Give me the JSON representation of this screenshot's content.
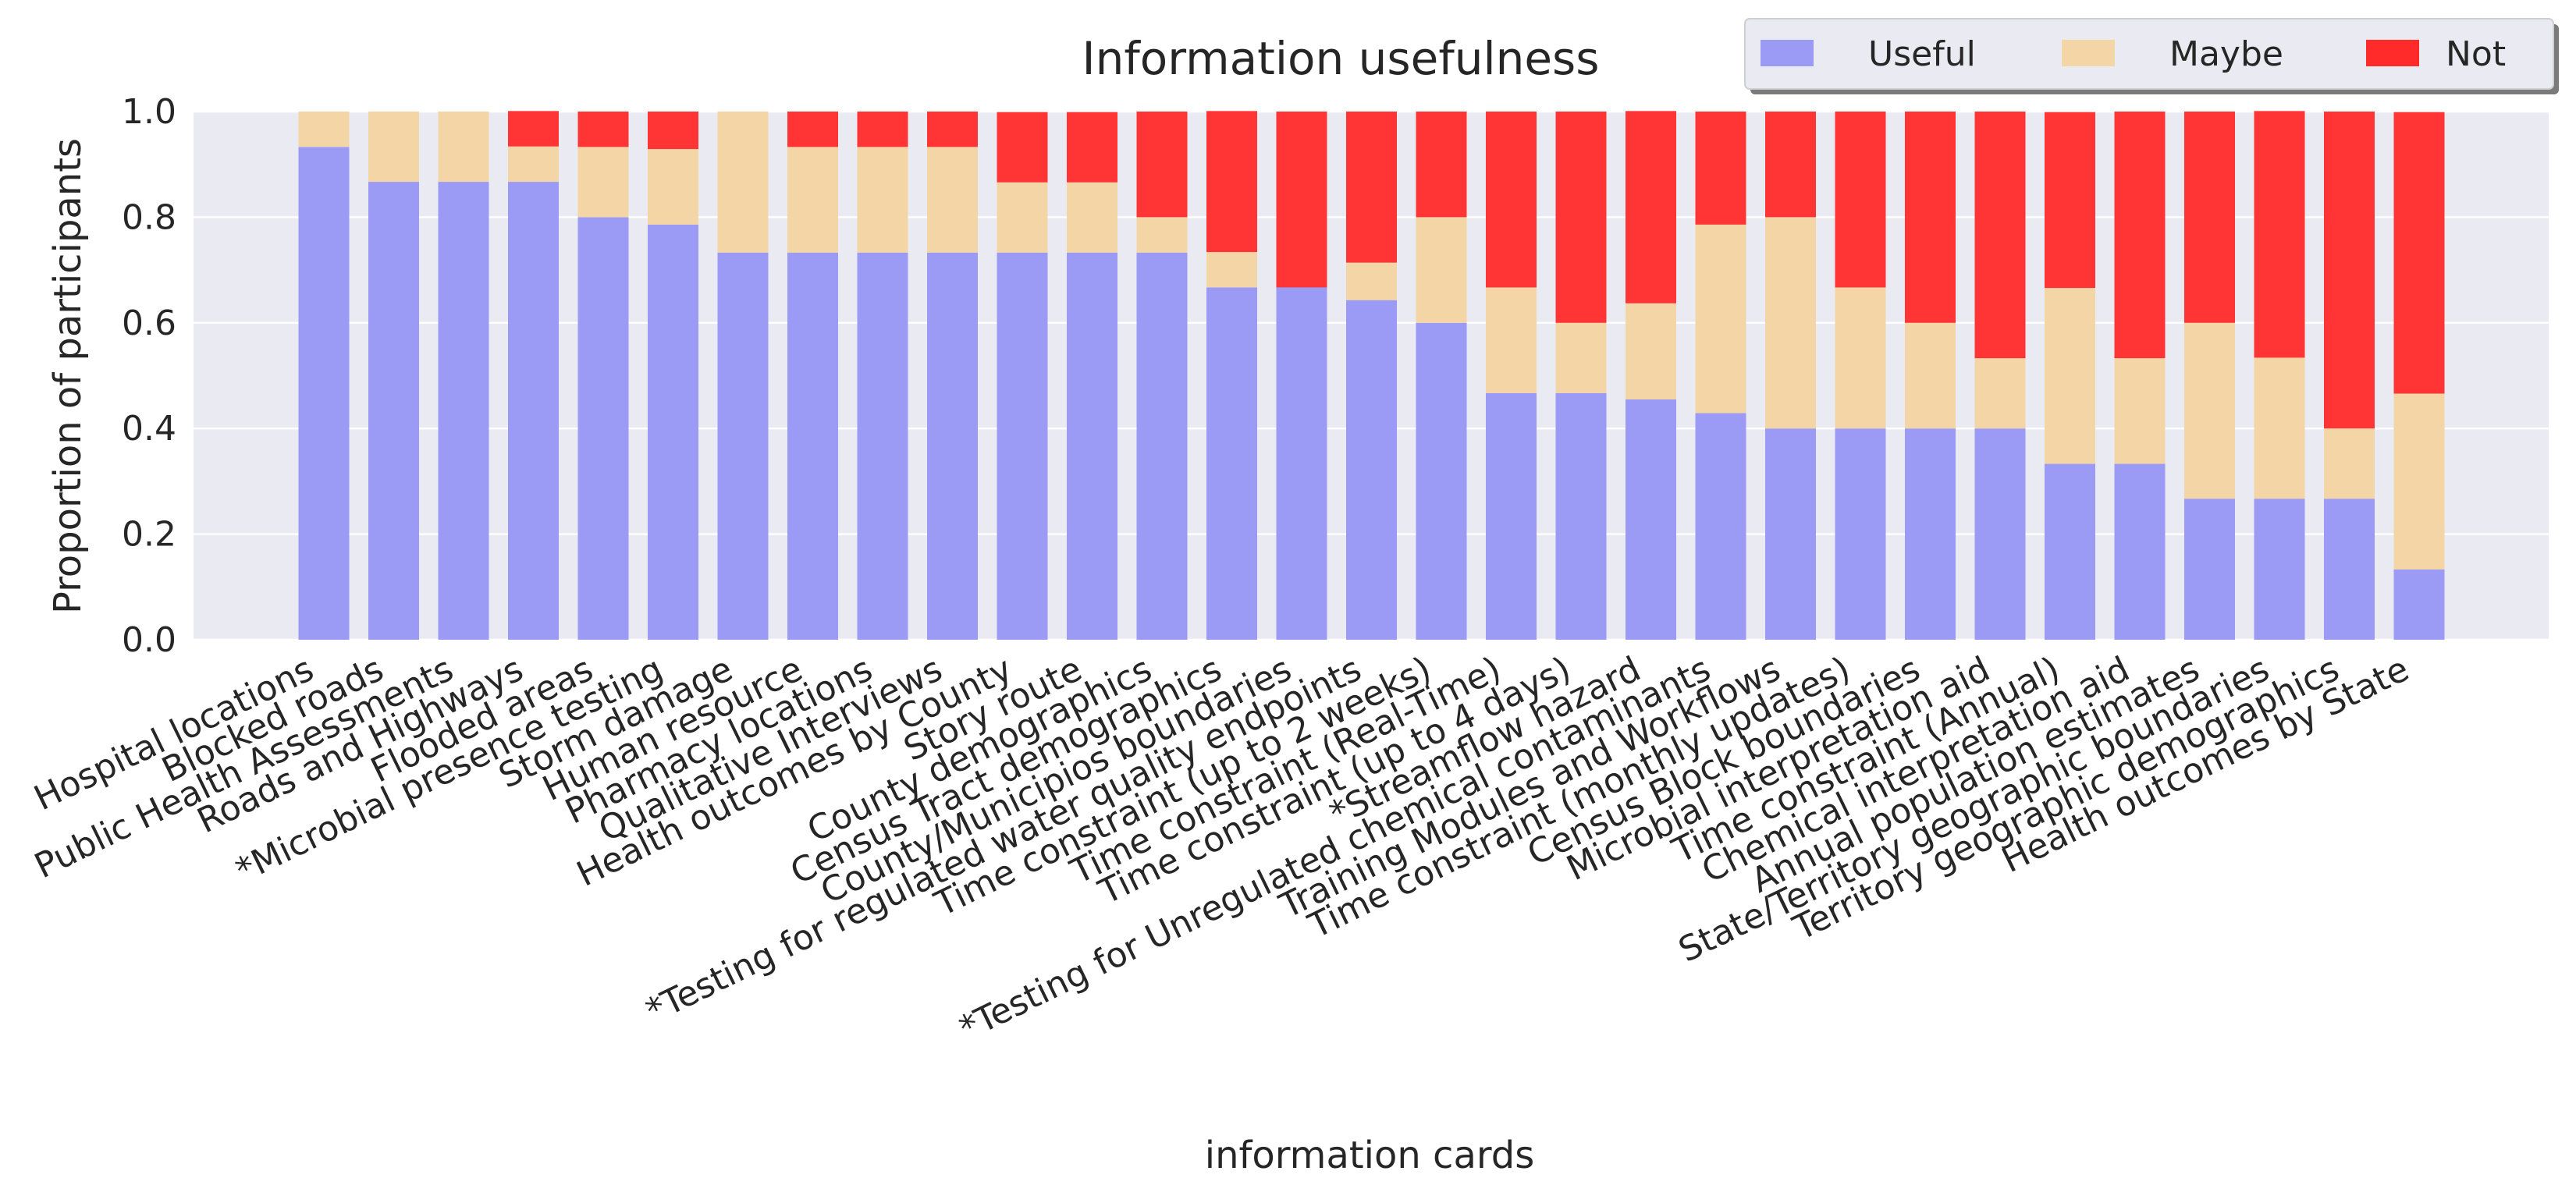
{
  "chart_data": {
    "type": "bar",
    "stacked": true,
    "title": "Information usefulness",
    "xlabel": "information cards",
    "ylabel": "Proportion of participants",
    "ylim": [
      0,
      1.0
    ],
    "yticks": [
      "0.0",
      "0.2",
      "0.4",
      "0.6",
      "0.8",
      "1.0"
    ],
    "grid": true,
    "legend_position": "top-right",
    "categories": [
      "Hospital locations",
      "Blocked roads",
      "Public Health Assessments",
      "Roads and Highways",
      "Flooded areas",
      "*Microbial presence testing",
      "Storm damage",
      "Human resource",
      "Pharmacy locations",
      "Qualitative Interviews",
      "Health outcomes by County",
      "Story route",
      "County demographics",
      "Census Tract demographics",
      "County/Municipios boundaries",
      "*Testing for regulated water quality endpoints",
      "Time constraint (up to 2 weeks)",
      "Time constraint (Real-Time)",
      "Time constraint (up to 4 days)",
      "*Streamflow hazard",
      "*Testing for Unregulated chemical contaminants",
      "Training Modules and Workflows",
      "Time constraint (monthly updates)",
      "Census Block boundaries",
      "Microbial interpretation aid",
      "Time constraint (Annual)",
      "Chemical interpretation aid",
      "Annual population estimates",
      "State/Territory geographic boundaries",
      "Territory geographic demographics",
      "Health outcomes by State"
    ],
    "series": [
      {
        "name": "Useful",
        "color": "#9b9bf5",
        "values": [
          0.933,
          0.867,
          0.867,
          0.867,
          0.8,
          0.786,
          0.733,
          0.733,
          0.733,
          0.733,
          0.733,
          0.733,
          0.733,
          0.667,
          0.667,
          0.643,
          0.6,
          0.467,
          0.467,
          0.455,
          0.429,
          0.4,
          0.4,
          0.4,
          0.4,
          0.333,
          0.333,
          0.267,
          0.267,
          0.267,
          0.133
        ]
      },
      {
        "name": "Maybe",
        "color": "#f3d5a6",
        "values": [
          0.067,
          0.133,
          0.133,
          0.067,
          0.133,
          0.143,
          0.267,
          0.2,
          0.2,
          0.2,
          0.133,
          0.133,
          0.067,
          0.067,
          0.0,
          0.071,
          0.2,
          0.2,
          0.133,
          0.182,
          0.357,
          0.4,
          0.267,
          0.2,
          0.133,
          0.333,
          0.2,
          0.333,
          0.267,
          0.133,
          0.333
        ]
      },
      {
        "name": "Not",
        "color": "#ff2a2a",
        "values": [
          0.0,
          0.0,
          0.0,
          0.067,
          0.067,
          0.071,
          0.0,
          0.067,
          0.067,
          0.067,
          0.133,
          0.133,
          0.2,
          0.267,
          0.333,
          0.286,
          0.2,
          0.333,
          0.4,
          0.364,
          0.214,
          0.2,
          0.333,
          0.4,
          0.467,
          0.333,
          0.467,
          0.4,
          0.467,
          0.6,
          0.533
        ]
      }
    ]
  }
}
